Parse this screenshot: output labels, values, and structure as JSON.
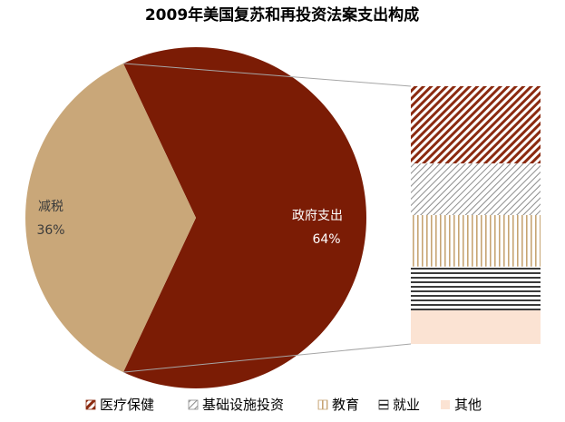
{
  "chart_data": {
    "type": "pie",
    "title": "2009年美国复苏和再投资法案支出构成",
    "pie": {
      "slices": [
        {
          "name": "政府支出",
          "value": 64,
          "label": "64%"
        },
        {
          "name": "减税",
          "value": 36,
          "label": "36%"
        }
      ]
    },
    "breakdown": {
      "of": "政府支出",
      "categories": [
        "医疗保健",
        "基础设施投资",
        "教育",
        "就业",
        "其他"
      ],
      "values": [
        30,
        20,
        20,
        17,
        13
      ]
    },
    "legend": {
      "position": "bottom",
      "entries": [
        "医疗保健",
        "基础设施投资",
        "教育",
        "就业",
        "其他"
      ]
    },
    "colors": {
      "government": "#7b1c05",
      "tax": "#c9a779",
      "healthcare": "#8b2a10",
      "infrastructure": "#8c8c8c",
      "education": "#c7a574",
      "employment": "#3b3b3b",
      "other": "#fbe3d3",
      "connector": "#a6a6a6",
      "label_dark": "#3b3b3b",
      "label_light": "#ffffff"
    }
  }
}
